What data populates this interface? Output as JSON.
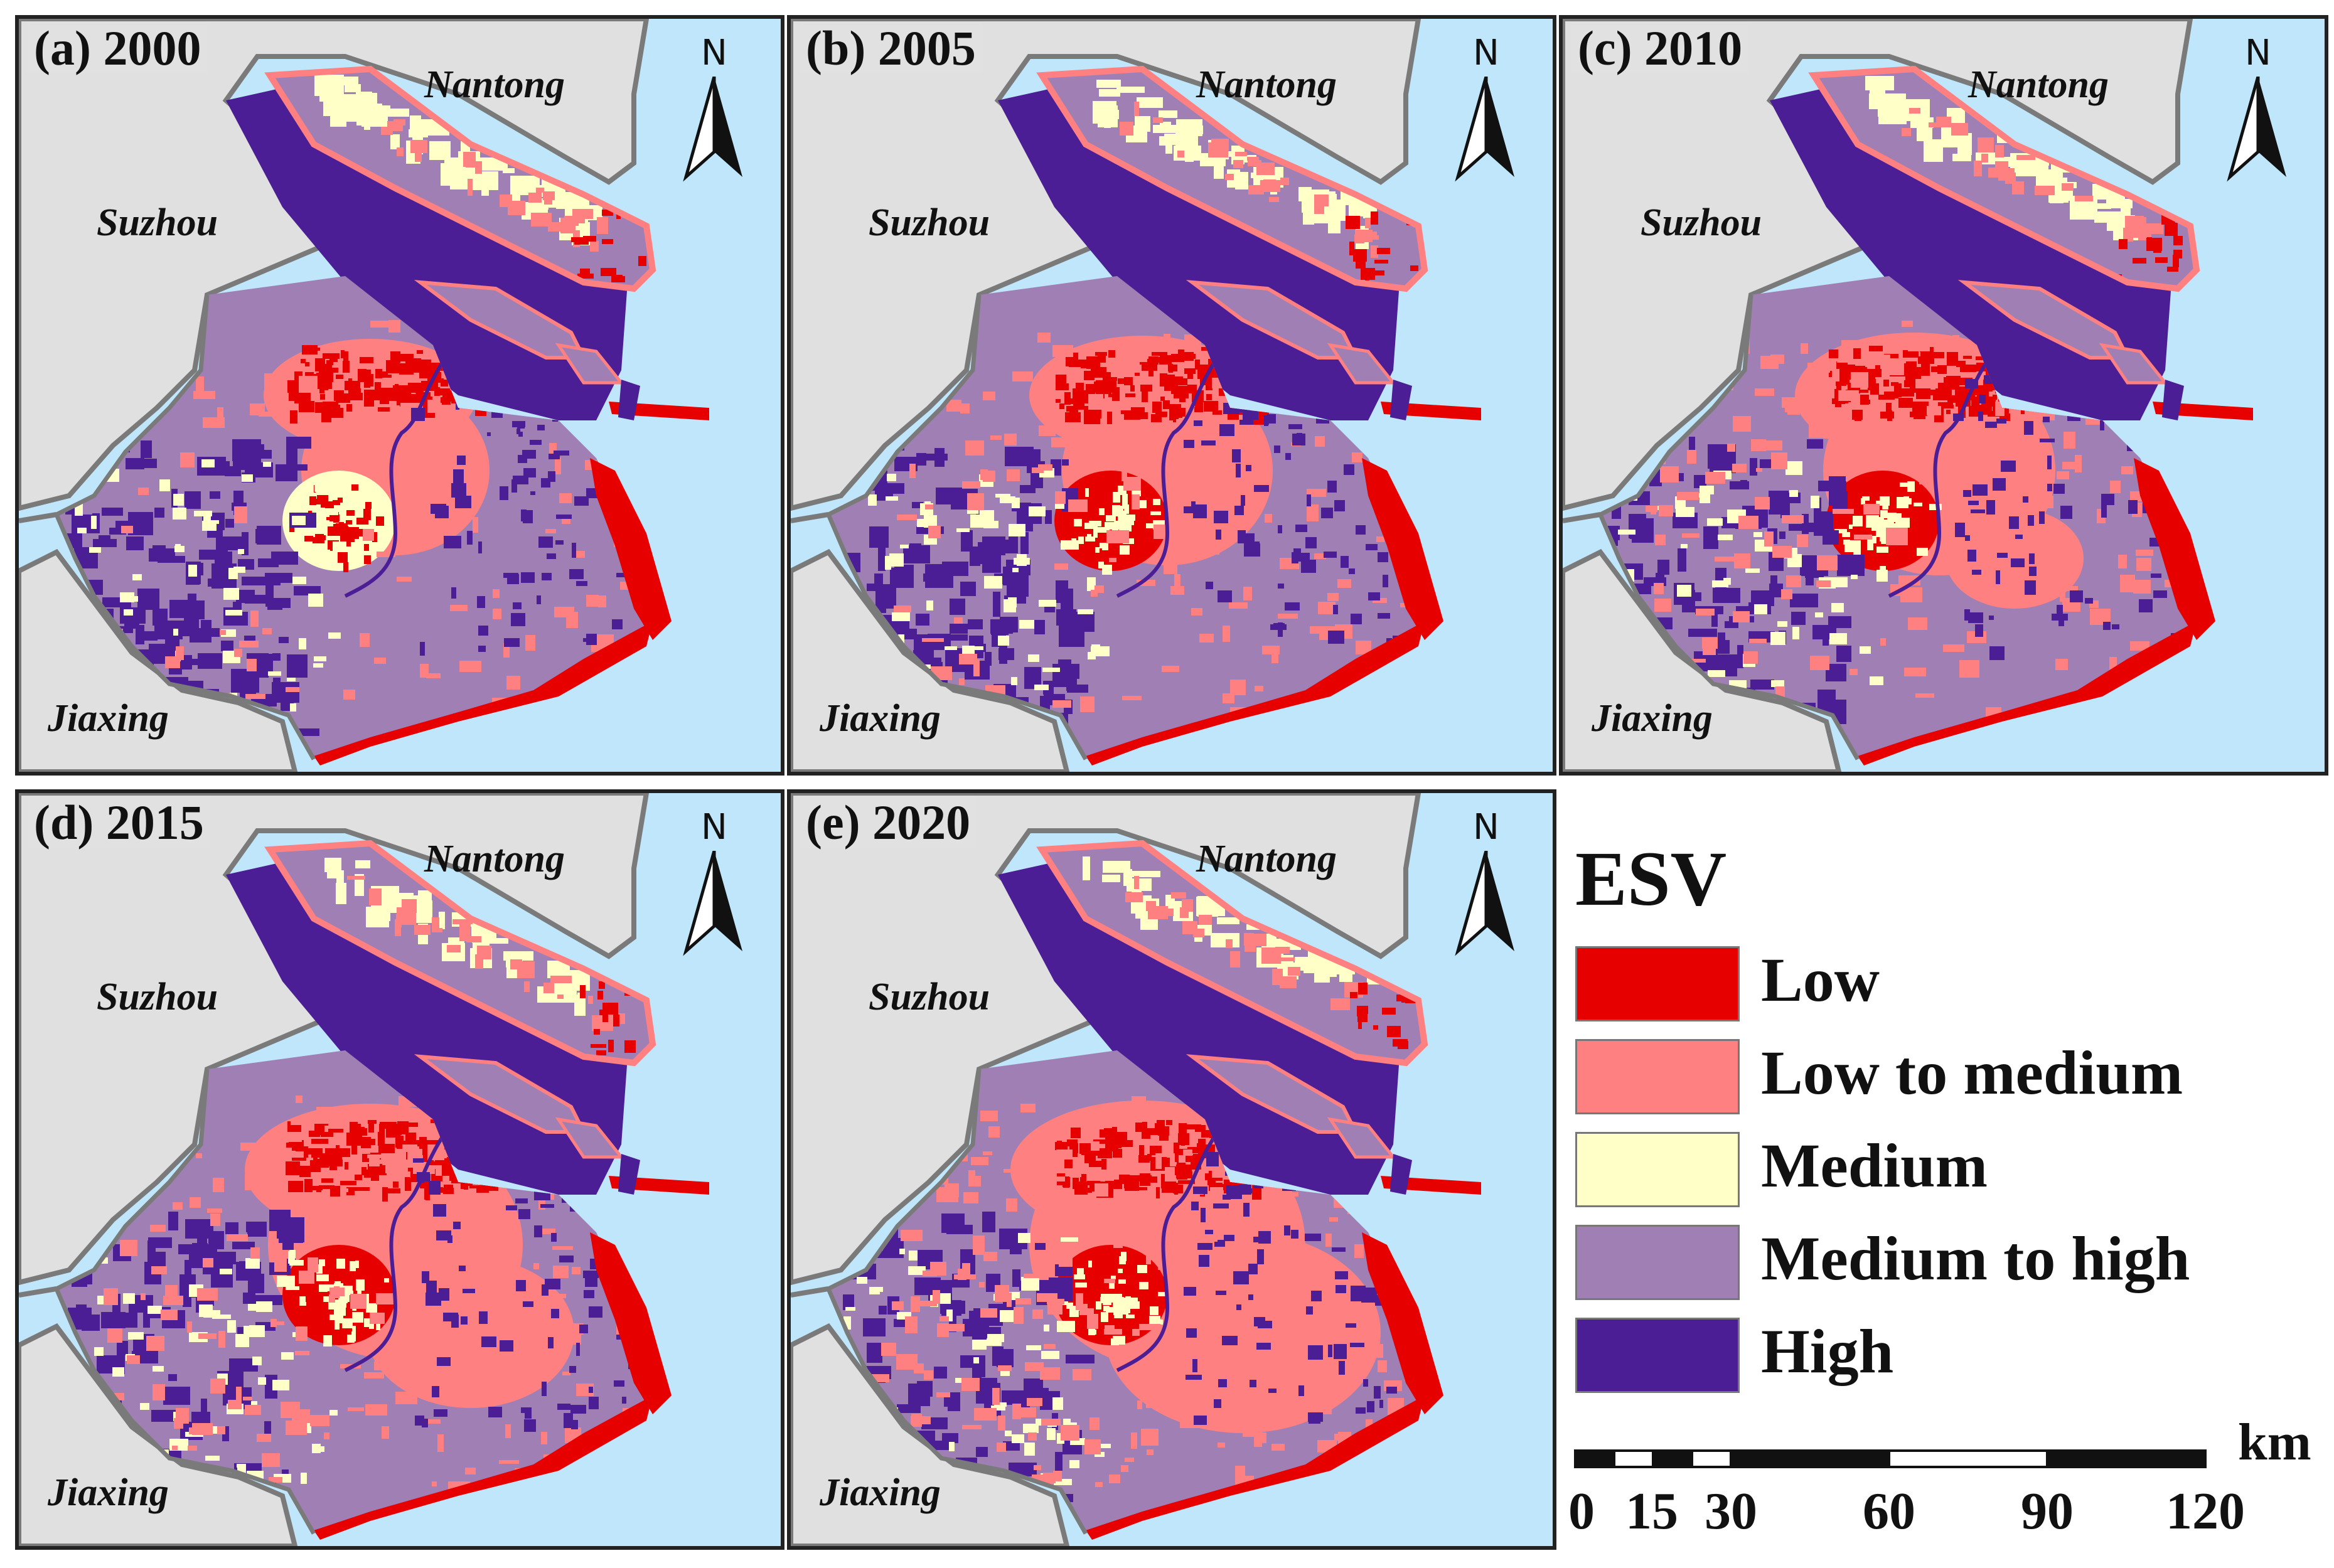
{
  "panels": [
    {
      "label": "(a) 2000",
      "year": 2000
    },
    {
      "label": "(b) 2005",
      "year": 2005
    },
    {
      "label": "(c) 2010",
      "year": 2010
    },
    {
      "label": "(d) 2015",
      "year": 2015
    },
    {
      "label": "(e) 2020",
      "year": 2020
    }
  ],
  "cities": {
    "north": "Nantong",
    "west": "Suzhou",
    "south": "Jiaxing"
  },
  "north_arrow": {
    "letter": "N"
  },
  "legend": {
    "title": "ESV",
    "items": [
      {
        "label": "Low",
        "color": "#e60000"
      },
      {
        "label": "Low to medium",
        "color": "#ff8080"
      },
      {
        "label": "Medium",
        "color": "#ffffc8"
      },
      {
        "label": "Medium to high",
        "color": "#a080b4"
      },
      {
        "label": "High",
        "color": "#4b1e96"
      }
    ]
  },
  "scalebar": {
    "unit": "km",
    "ticks": [
      "0",
      "15",
      "30",
      "60",
      "90",
      "120"
    ]
  },
  "colors": {
    "water": "#bfe6fa",
    "land": "#e0e0e0",
    "boundary": "#7a7a7a"
  }
}
